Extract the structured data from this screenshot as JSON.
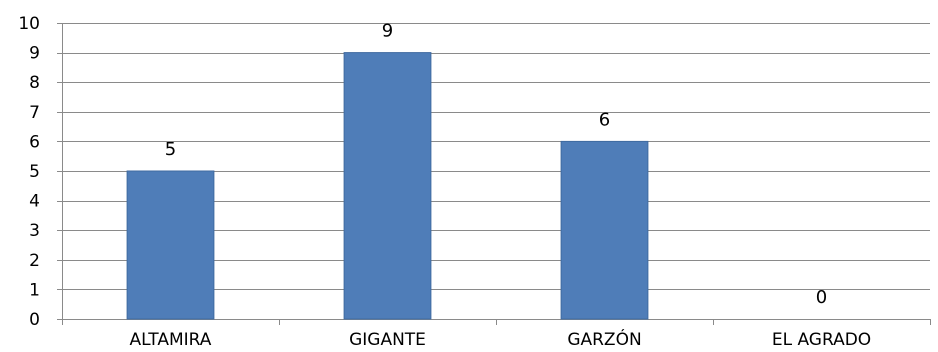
{
  "chart_data": {
    "type": "bar",
    "categories": [
      "ALTAMIRA",
      "GIGANTE",
      "GARZÓN",
      "EL AGRADO"
    ],
    "values": [
      5,
      9,
      6,
      0
    ],
    "data_labels": [
      "5",
      "9",
      "6",
      "0"
    ],
    "y_ticks": [
      "0",
      "1",
      "2",
      "3",
      "4",
      "5",
      "6",
      "7",
      "8",
      "9",
      "10"
    ],
    "ylim": [
      0,
      10
    ],
    "grid": true,
    "legend": "none",
    "colors": {
      "bar": "#4f7db8",
      "bar_edge": "#3f6aa0",
      "grid": "#8a8a8a",
      "axis": "#8a8a8a"
    }
  }
}
